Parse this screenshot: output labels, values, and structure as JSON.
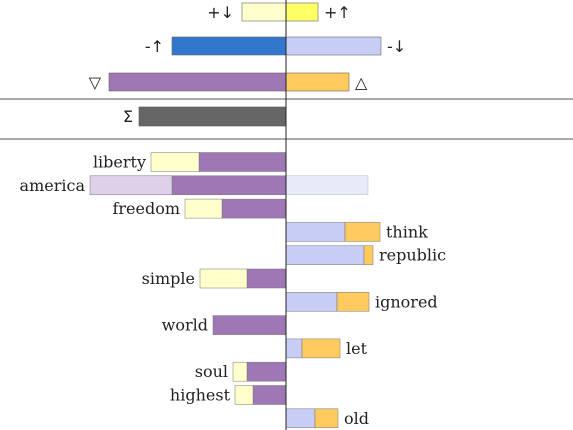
{
  "chart_data": {
    "type": "bar",
    "colors": {
      "plus_down": "#ffffcc",
      "plus_up": "#ffff66",
      "minus_up": "#3377cc",
      "minus_down": "#c7cdf5",
      "nabla": "#9f77b5",
      "delta": "#ffca5e",
      "sigma": "#666666",
      "left_faded": "#ddd0e8",
      "right_faded": "#e8eaf9"
    },
    "legend": [
      {
        "symbol": "+↓",
        "key": "plus_down",
        "side": "left",
        "value": 44
      },
      {
        "symbol": "+↑",
        "key": "plus_up",
        "side": "right",
        "value": 32
      },
      {
        "symbol": "-↑",
        "key": "minus_up",
        "side": "left",
        "value": 114
      },
      {
        "symbol": "-↓",
        "key": "minus_down",
        "side": "right",
        "value": 95
      },
      {
        "symbol": "▽",
        "key": "nabla",
        "side": "left",
        "value": 177
      },
      {
        "symbol": "△",
        "key": "delta",
        "side": "right",
        "value": 63
      }
    ],
    "total": {
      "symbol": "Σ",
      "key": "sigma",
      "value": 147
    },
    "words": [
      {
        "label": "liberty",
        "side": "left",
        "values": [
          {
            "key": "nabla",
            "value": 87
          },
          {
            "key": "plus_down",
            "value": 48
          }
        ]
      },
      {
        "label": "america",
        "side": "left",
        "values": [
          {
            "key": "nabla",
            "value": 114
          },
          {
            "key": "left_faded",
            "value": 82
          }
        ],
        "mirror": 82
      },
      {
        "label": "freedom",
        "side": "left",
        "values": [
          {
            "key": "nabla",
            "value": 64
          },
          {
            "key": "plus_down",
            "value": 37
          }
        ]
      },
      {
        "label": "think",
        "side": "right",
        "values": [
          {
            "key": "minus_down",
            "value": 59
          },
          {
            "key": "delta",
            "value": 35
          }
        ]
      },
      {
        "label": "republic",
        "side": "right",
        "values": [
          {
            "key": "minus_down",
            "value": 78
          },
          {
            "key": "delta",
            "value": 9
          }
        ]
      },
      {
        "label": "simple",
        "side": "left",
        "values": [
          {
            "key": "nabla",
            "value": 39
          },
          {
            "key": "plus_down",
            "value": 47
          }
        ]
      },
      {
        "label": "ignored",
        "side": "right",
        "values": [
          {
            "key": "minus_down",
            "value": 51
          },
          {
            "key": "delta",
            "value": 32
          }
        ]
      },
      {
        "label": "world",
        "side": "left",
        "values": [
          {
            "key": "nabla",
            "value": 73
          }
        ]
      },
      {
        "label": "let",
        "side": "right",
        "values": [
          {
            "key": "minus_down",
            "value": 16
          },
          {
            "key": "delta",
            "value": 38
          }
        ]
      },
      {
        "label": "soul",
        "side": "left",
        "values": [
          {
            "key": "nabla",
            "value": 39
          },
          {
            "key": "plus_down",
            "value": 14
          }
        ]
      },
      {
        "label": "highest",
        "side": "left",
        "values": [
          {
            "key": "nabla",
            "value": 33
          },
          {
            "key": "plus_down",
            "value": 18
          }
        ]
      },
      {
        "label": "old",
        "side": "right",
        "values": [
          {
            "key": "minus_down",
            "value": 29
          },
          {
            "key": "delta",
            "value": 23
          }
        ]
      }
    ]
  }
}
